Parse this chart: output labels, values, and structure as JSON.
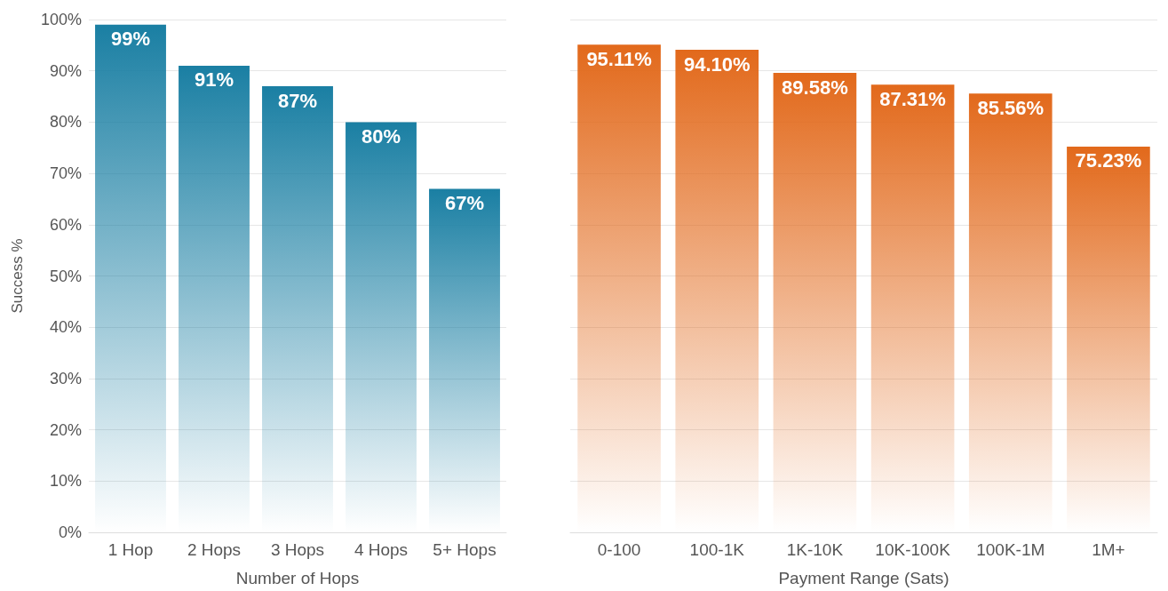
{
  "chart_data": [
    {
      "type": "bar",
      "xlabel": "Number of Hops",
      "ylabel": "Success %",
      "categories": [
        "1 Hop",
        "2 Hops",
        "3 Hops",
        "4 Hops",
        "5+ Hops"
      ],
      "values": [
        99,
        91,
        87,
        80,
        67
      ],
      "value_labels": [
        "99%",
        "91%",
        "87%",
        "80%",
        "67%"
      ],
      "color": "#1a7fa3",
      "ylim": [
        0,
        100
      ],
      "yticks": [
        {
          "value": 0,
          "label": "0%"
        },
        {
          "value": 10,
          "label": "10%"
        },
        {
          "value": 20,
          "label": "20%"
        },
        {
          "value": 30,
          "label": "30%"
        },
        {
          "value": 40,
          "label": "40%"
        },
        {
          "value": 50,
          "label": "50%"
        },
        {
          "value": 60,
          "label": "60%"
        },
        {
          "value": 70,
          "label": "70%"
        },
        {
          "value": 80,
          "label": "80%"
        },
        {
          "value": 90,
          "label": "90%"
        },
        {
          "value": 100,
          "label": "100%"
        }
      ],
      "grid": "y"
    },
    {
      "type": "bar",
      "xlabel": "Payment Range (Sats)",
      "categories": [
        "0-100",
        "100-1K",
        "1K-10K",
        "10K-100K",
        "100K-1M",
        "1M+"
      ],
      "values": [
        95.11,
        94.1,
        89.58,
        87.31,
        85.56,
        75.23
      ],
      "value_labels": [
        "95.11%",
        "94.10%",
        "89.58%",
        "87.31%",
        "85.56%",
        "75.23%"
      ],
      "color": "#e2691b",
      "ylim": [
        0,
        100
      ],
      "yticks": [
        0,
        10,
        20,
        30,
        40,
        50,
        60,
        70,
        80,
        90,
        100
      ],
      "grid": "y",
      "tick_labels": "x"
    }
  ]
}
